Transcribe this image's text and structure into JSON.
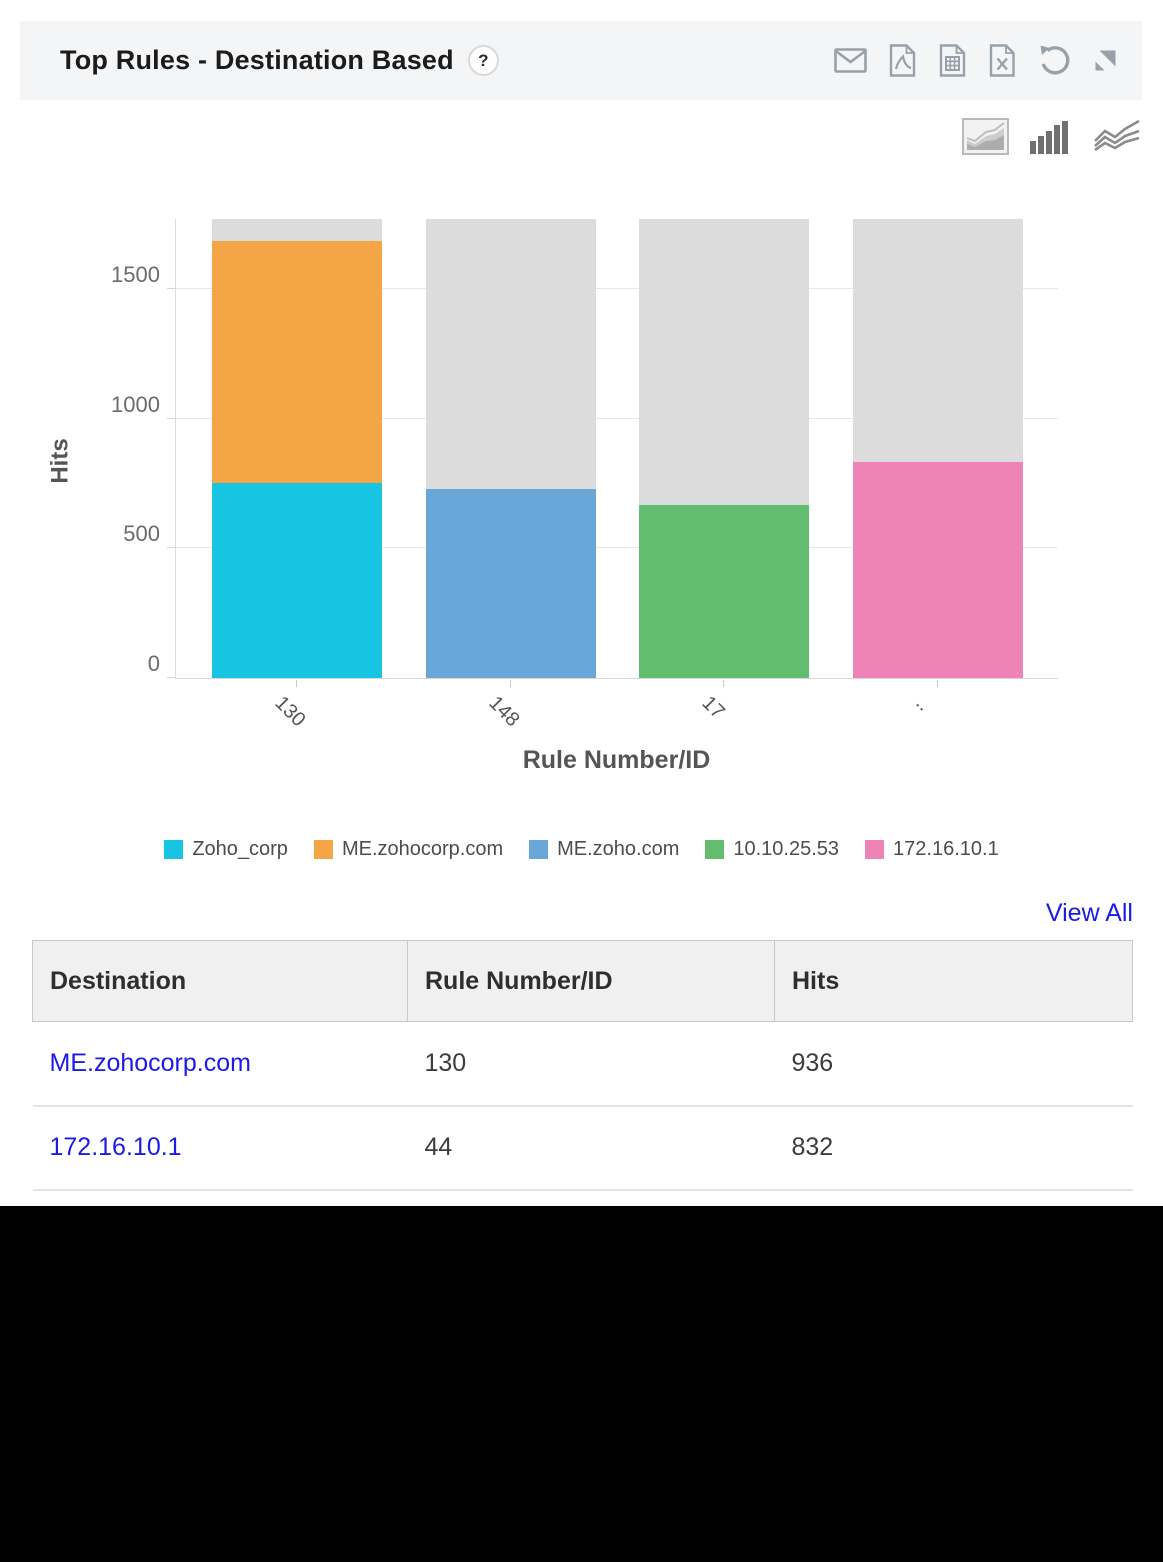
{
  "widget": {
    "title": "Top Rules - Destination Based",
    "help_label": "?"
  },
  "toolbar": {
    "icons": [
      "email-icon",
      "pdf-export-icon",
      "csv-export-icon",
      "excel-export-icon",
      "refresh-icon",
      "expand-icon"
    ]
  },
  "chart_switcher": [
    "area-chart-icon",
    "bar-chart-icon",
    "line-chart-icon"
  ],
  "chart_data": {
    "type": "bar",
    "stacked": true,
    "title": "",
    "xlabel": "Rule Number/ID",
    "ylabel": "Hits",
    "categories": [
      "130",
      "148",
      "17",
      ".."
    ],
    "series": [
      {
        "name": "Zoho_corp",
        "color": "#17c4e2",
        "values": [
          750,
          0,
          0,
          0
        ]
      },
      {
        "name": "ME.zohocorp.com",
        "color": "#f4a646",
        "values": [
          936,
          0,
          0,
          0
        ]
      },
      {
        "name": "ME.zoho.com",
        "color": "#6aa7d9",
        "values": [
          0,
          728,
          0,
          0
        ]
      },
      {
        "name": "10.10.25.53",
        "color": "#63bd6e",
        "values": [
          0,
          0,
          665,
          0
        ]
      },
      {
        "name": "172.16.10.1",
        "color": "#ee84b5",
        "values": [
          0,
          0,
          0,
          832
        ]
      }
    ],
    "background_bar": {
      "color": "#dcdcdc",
      "full_height_value": 1773
    },
    "yticks": [
      0,
      500,
      1000,
      1500
    ],
    "ylim": [
      0,
      1773
    ],
    "grid": true,
    "legend_position": "bottom"
  },
  "table": {
    "view_all_label": "View All",
    "columns": [
      "Destination",
      "Rule Number/ID",
      "Hits"
    ],
    "rows": [
      {
        "destination": "ME.zohocorp.com",
        "rule": "130",
        "hits": "936"
      },
      {
        "destination": "172.16.10.1",
        "rule": "44",
        "hits": "832"
      }
    ]
  },
  "colors": {
    "titlebar_bg": "#f4f5f7",
    "icon_gray": "#98a1aa",
    "link_blue": "#1b1be4",
    "background_bar": "#dcdcdc",
    "footer_black": "#000000"
  }
}
